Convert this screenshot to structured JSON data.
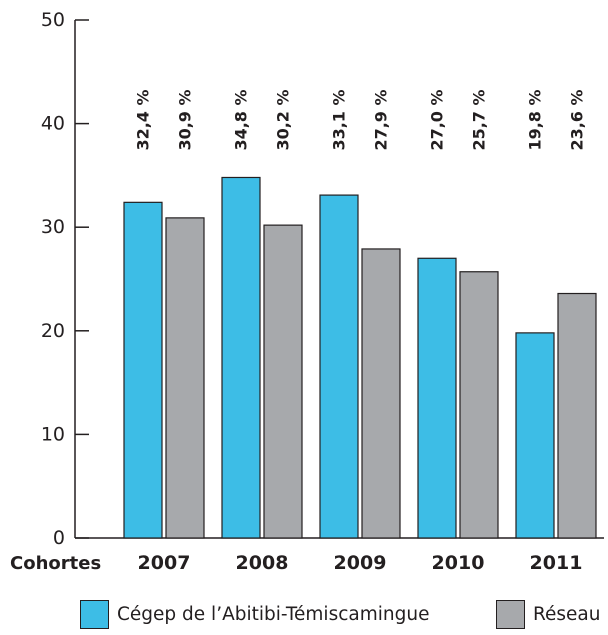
{
  "chart_data": {
    "type": "bar",
    "x_axis_name": "Cohortes",
    "categories": [
      "2007",
      "2008",
      "2009",
      "2010",
      "2011"
    ],
    "series": [
      {
        "name": "Cégep de l’Abitibi-Témiscamingue",
        "color": "#3dbde6",
        "values": [
          32.4,
          34.8,
          33.1,
          27.0,
          19.8
        ],
        "labels": [
          "32,4 %",
          "34,8 %",
          "33,1 %",
          "27,0 %",
          "19,8 %"
        ]
      },
      {
        "name": "Réseau",
        "color": "#a7a9ac",
        "values": [
          30.9,
          30.2,
          27.9,
          25.7,
          23.6
        ],
        "labels": [
          "30,9 %",
          "30,2 %",
          "27,9 %",
          "25,7 %",
          "23,6 %"
        ]
      }
    ],
    "yticks": [
      "0",
      "10",
      "20",
      "30",
      "40",
      "50"
    ],
    "ylim": [
      0,
      50
    ],
    "grid": false,
    "legend_position": "bottom"
  }
}
